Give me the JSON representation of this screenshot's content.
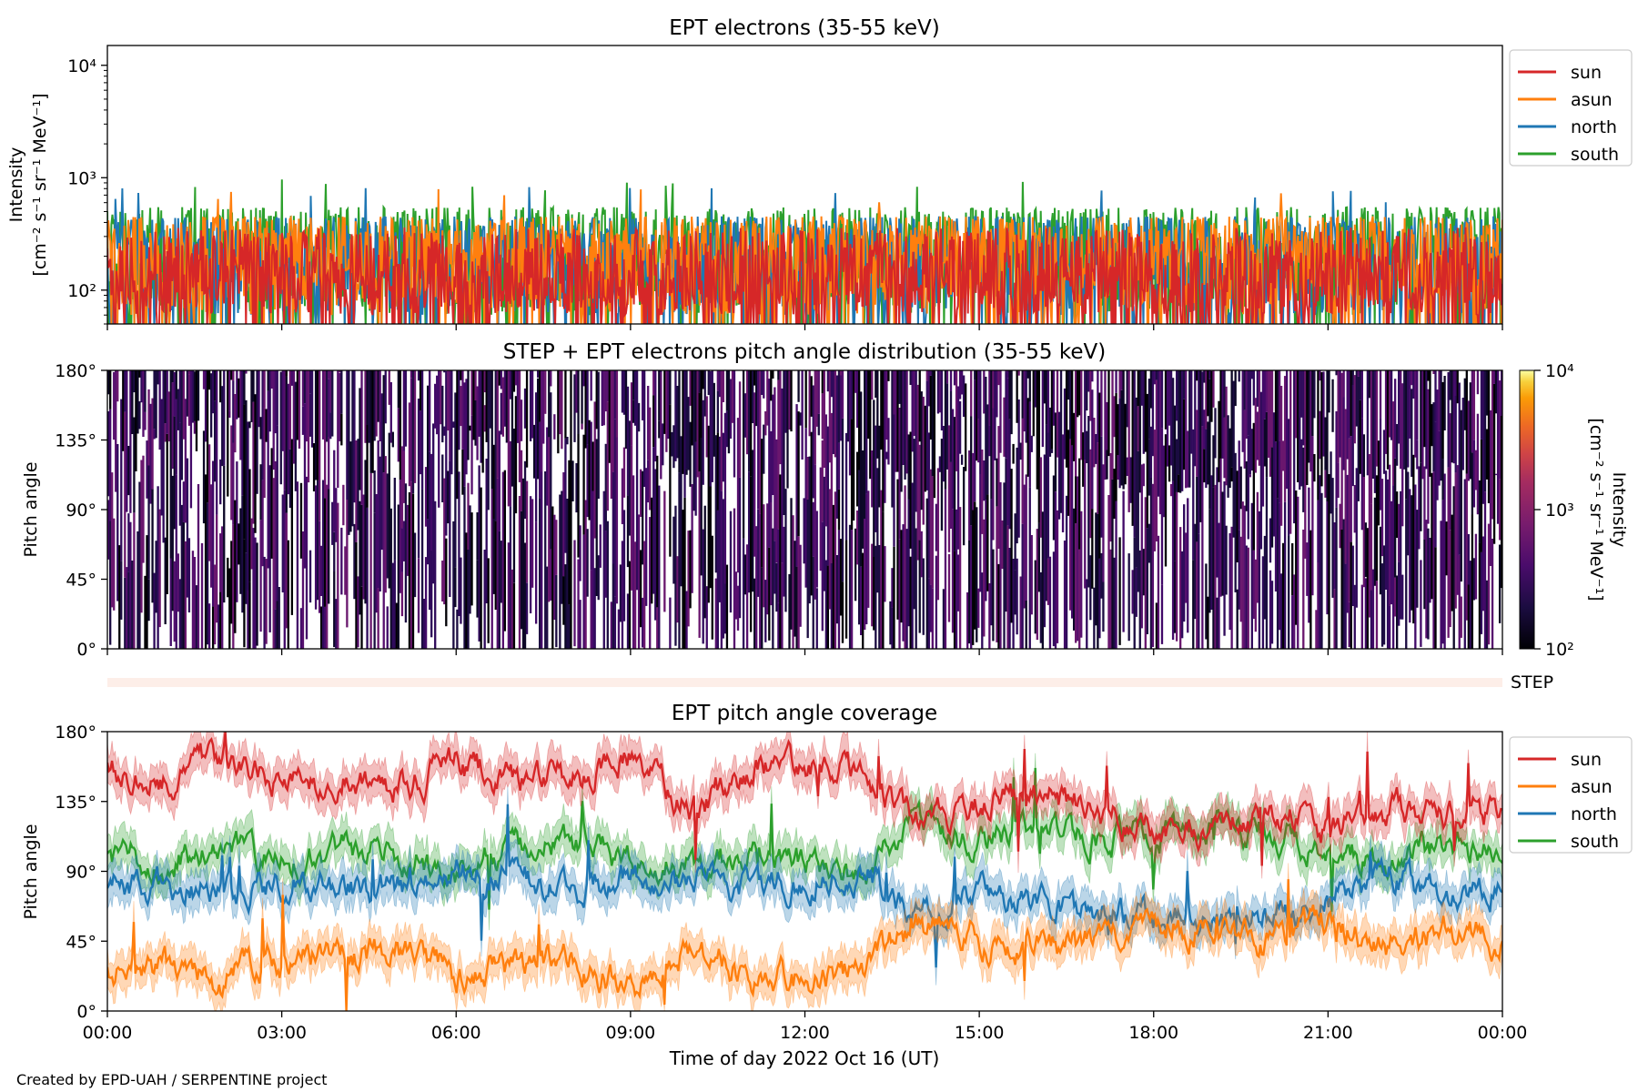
{
  "footer": "Created by EPD-UAH / SERPENTINE project",
  "colors": {
    "sun": "#d62728",
    "asun": "#ff7f0e",
    "north": "#1f77b4",
    "south": "#2ca02c",
    "step_bar": "#fdeee8"
  },
  "chart_data": [
    {
      "type": "line",
      "title": "EPT electrons (35-55 keV)",
      "ylabel_line1": "Intensity",
      "ylabel_line2": "[cm⁻² s⁻¹ sr⁻¹ MeV⁻¹]",
      "yscale": "log",
      "ylim": [
        50,
        15000
      ],
      "yticks": [
        {
          "value": 100,
          "label": "10²"
        },
        {
          "value": 1000,
          "label": "10³"
        },
        {
          "value": 10000,
          "label": "10⁴"
        }
      ],
      "xlim_hours": [
        0,
        24
      ],
      "legend": {
        "placement": "outside-right",
        "entries": [
          "sun",
          "asun",
          "north",
          "south"
        ]
      },
      "series": [
        {
          "name": "sun",
          "color": "#d62728",
          "typical_range": [
            60,
            400
          ]
        },
        {
          "name": "asun",
          "color": "#ff7f0e",
          "typical_range": [
            60,
            750
          ]
        },
        {
          "name": "north",
          "color": "#1f77b4",
          "typical_range": [
            60,
            750
          ]
        },
        {
          "name": "south",
          "color": "#2ca02c",
          "typical_range": [
            60,
            950
          ]
        }
      ]
    },
    {
      "type": "heatmap",
      "title": "STEP + EPT electrons pitch angle distribution (35-55 keV)",
      "ylabel": "Pitch angle",
      "ylim": [
        0,
        180
      ],
      "yticks": [
        "0°",
        "45°",
        "90°",
        "135°",
        "180°"
      ],
      "colorbar": {
        "label_line1": "Intensity",
        "label_line2": "[cm⁻² s⁻¹ sr⁻¹ MeV⁻¹]",
        "scale": "log",
        "range": [
          100,
          10000
        ],
        "ticks": [
          "10²",
          "10³",
          "10⁴"
        ]
      },
      "xlim_hours": [
        0,
        24
      ]
    },
    {
      "type": "bar",
      "label": "STEP"
    },
    {
      "type": "line",
      "title": "EPT pitch angle coverage",
      "ylabel": "Pitch angle",
      "ylim": [
        0,
        180
      ],
      "yticks": [
        "0°",
        "45°",
        "90°",
        "135°",
        "180°"
      ],
      "xlabel": "Time of day 2022 Oct 16 (UT)",
      "xticks": [
        "00:00",
        "03:00",
        "06:00",
        "09:00",
        "12:00",
        "15:00",
        "18:00",
        "21:00",
        "00:00"
      ],
      "xlim_hours": [
        0,
        24
      ],
      "legend": {
        "placement": "outside-right",
        "entries": [
          "sun",
          "asun",
          "north",
          "south"
        ]
      },
      "series": [
        {
          "name": "sun",
          "color": "#d62728",
          "keypoints": [
            [
              0,
              155
            ],
            [
              1,
              150
            ],
            [
              2,
              165
            ],
            [
              3,
              148
            ],
            [
              4,
              150
            ],
            [
              5,
              145
            ],
            [
              6,
              160
            ],
            [
              7,
              148
            ],
            [
              8,
              150
            ],
            [
              9,
              165
            ],
            [
              10,
              130
            ],
            [
              11,
              155
            ],
            [
              12,
              160
            ],
            [
              13,
              150
            ],
            [
              14,
              120
            ],
            [
              15,
              135
            ],
            [
              16,
              140
            ],
            [
              17,
              130
            ],
            [
              18,
              118
            ],
            [
              19,
              120
            ],
            [
              20,
              130
            ],
            [
              21,
              115
            ],
            [
              22,
              130
            ],
            [
              23,
              125
            ],
            [
              24,
              130
            ]
          ]
        },
        {
          "name": "asun",
          "color": "#ff7f0e",
          "keypoints": [
            [
              0,
              25
            ],
            [
              1,
              30
            ],
            [
              2,
              20
            ],
            [
              3,
              35
            ],
            [
              4,
              35
            ],
            [
              5,
              40
            ],
            [
              6,
              20
            ],
            [
              7,
              30
            ],
            [
              8,
              30
            ],
            [
              9,
              15
            ],
            [
              10,
              40
            ],
            [
              11,
              25
            ],
            [
              12,
              20
            ],
            [
              13,
              30
            ],
            [
              14,
              55
            ],
            [
              15,
              45
            ],
            [
              16,
              40
            ],
            [
              17,
              45
            ],
            [
              18,
              60
            ],
            [
              19,
              50
            ],
            [
              20,
              45
            ],
            [
              21,
              60
            ],
            [
              22,
              40
            ],
            [
              23,
              50
            ],
            [
              24,
              45
            ]
          ]
        },
        {
          "name": "north",
          "color": "#1f77b4",
          "keypoints": [
            [
              0,
              80
            ],
            [
              1,
              85
            ],
            [
              2,
              75
            ],
            [
              3,
              85
            ],
            [
              4,
              75
            ],
            [
              5,
              80
            ],
            [
              6,
              90
            ],
            [
              7,
              85
            ],
            [
              8,
              80
            ],
            [
              9,
              85
            ],
            [
              10,
              85
            ],
            [
              11,
              80
            ],
            [
              12,
              85
            ],
            [
              13,
              90
            ],
            [
              14,
              60
            ],
            [
              15,
              75
            ],
            [
              16,
              70
            ],
            [
              17,
              65
            ],
            [
              18,
              60
            ],
            [
              19,
              55
            ],
            [
              20,
              60
            ],
            [
              21,
              70
            ],
            [
              22,
              85
            ],
            [
              23,
              75
            ],
            [
              24,
              80
            ]
          ]
        },
        {
          "name": "south",
          "color": "#2ca02c",
          "keypoints": [
            [
              0,
              100
            ],
            [
              1,
              95
            ],
            [
              2,
              105
            ],
            [
              3,
              95
            ],
            [
              4,
              105
            ],
            [
              5,
              100
            ],
            [
              6,
              90
            ],
            [
              7,
              105
            ],
            [
              8,
              110
            ],
            [
              9,
              95
            ],
            [
              10,
              95
            ],
            [
              11,
              100
            ],
            [
              12,
              95
            ],
            [
              13,
              90
            ],
            [
              14,
              120
            ],
            [
              15,
              110
            ],
            [
              16,
              115
            ],
            [
              17,
              115
            ],
            [
              18,
              110
            ],
            [
              19,
              120
            ],
            [
              20,
              115
            ],
            [
              21,
              105
            ],
            [
              22,
              95
            ],
            [
              23,
              105
            ],
            [
              24,
              100
            ]
          ]
        }
      ]
    }
  ]
}
